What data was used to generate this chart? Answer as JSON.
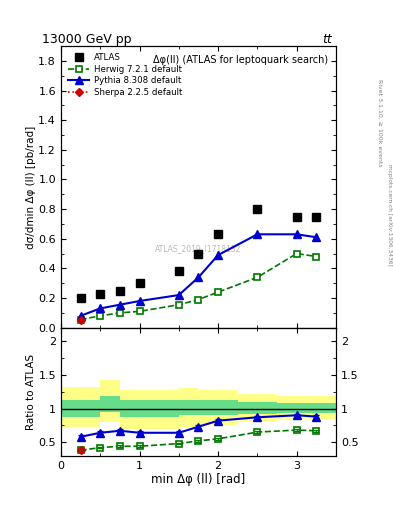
{
  "title_top": "13000 GeV pp",
  "title_top_right": "tt",
  "plot_label": "Δφ(ll) (ATLAS for leptoquark search)",
  "ylabel_main": "dσ/dmin Δφ (ll) [pb/rad]",
  "ylabel_ratio": "Ratio to ATLAS",
  "xlabel": "min Δφ (ll) [rad]",
  "right_label": "Rivet 3.1.10, ≥ 100k events",
  "right_label2": "mcplots.cern.ch [arXiv:1306.3436]",
  "watermark": "ATLAS_2019_I1718132",
  "x_atlas": [
    0.25,
    0.5,
    0.75,
    1.0,
    1.5,
    1.75,
    2.0,
    2.5,
    3.0,
    3.25
  ],
  "y_atlas": [
    0.2,
    0.23,
    0.25,
    0.3,
    0.38,
    0.5,
    0.63,
    0.8,
    0.75,
    0.75
  ],
  "x_herwig": [
    0.25,
    0.5,
    0.75,
    1.0,
    1.5,
    1.75,
    2.0,
    2.5,
    3.0,
    3.25
  ],
  "y_herwig": [
    0.055,
    0.08,
    0.1,
    0.11,
    0.155,
    0.19,
    0.24,
    0.34,
    0.5,
    0.48
  ],
  "x_pythia": [
    0.25,
    0.5,
    0.75,
    1.0,
    1.5,
    1.75,
    2.0,
    2.5,
    3.0,
    3.25
  ],
  "y_pythia": [
    0.08,
    0.13,
    0.155,
    0.18,
    0.22,
    0.34,
    0.49,
    0.63,
    0.63,
    0.61
  ],
  "x_sherpa": [
    0.25
  ],
  "y_sherpa": [
    0.055
  ],
  "ylim_main": [
    0.0,
    1.9
  ],
  "ylim_ratio": [
    0.3,
    2.2
  ],
  "ratio_herwig": [
    0.38,
    0.42,
    0.44,
    0.44,
    0.48,
    0.52,
    0.55,
    0.65,
    0.68,
    0.67
  ],
  "ratio_pythia": [
    0.58,
    0.64,
    0.67,
    0.64,
    0.64,
    0.73,
    0.82,
    0.87,
    0.9,
    0.88
  ],
  "ratio_sherpa": [
    0.38
  ],
  "band_x_edges": [
    0.0,
    0.5,
    0.75,
    1.5,
    1.75,
    2.25,
    2.75,
    3.5
  ],
  "band_green_lo": [
    0.88,
    0.95,
    0.88,
    0.9,
    0.9,
    0.92,
    0.93,
    0.95
  ],
  "band_green_hi": [
    1.12,
    1.18,
    1.12,
    1.13,
    1.13,
    1.1,
    1.08,
    1.05
  ],
  "band_yellow_lo": [
    0.72,
    0.8,
    0.7,
    0.72,
    0.75,
    0.8,
    0.85,
    0.88
  ],
  "band_yellow_hi": [
    1.32,
    1.42,
    1.28,
    1.3,
    1.28,
    1.22,
    1.18,
    1.12
  ],
  "color_atlas": "#000000",
  "color_herwig": "#007700",
  "color_pythia": "#0000cc",
  "color_sherpa": "#cc0000",
  "color_band_green": "#66dd88",
  "color_band_yellow": "#ffff88",
  "atlas_marker": "s",
  "herwig_marker": "s",
  "pythia_marker": "^",
  "sherpa_marker": "D",
  "yticks_main": [
    0.0,
    0.2,
    0.4,
    0.6,
    0.8,
    1.0,
    1.2,
    1.4,
    1.6,
    1.8
  ],
  "yticks_ratio": [
    0.5,
    1.0,
    1.5,
    2.0
  ],
  "xticks": [
    0,
    1,
    2,
    3
  ],
  "xlim": [
    0.0,
    3.5
  ]
}
